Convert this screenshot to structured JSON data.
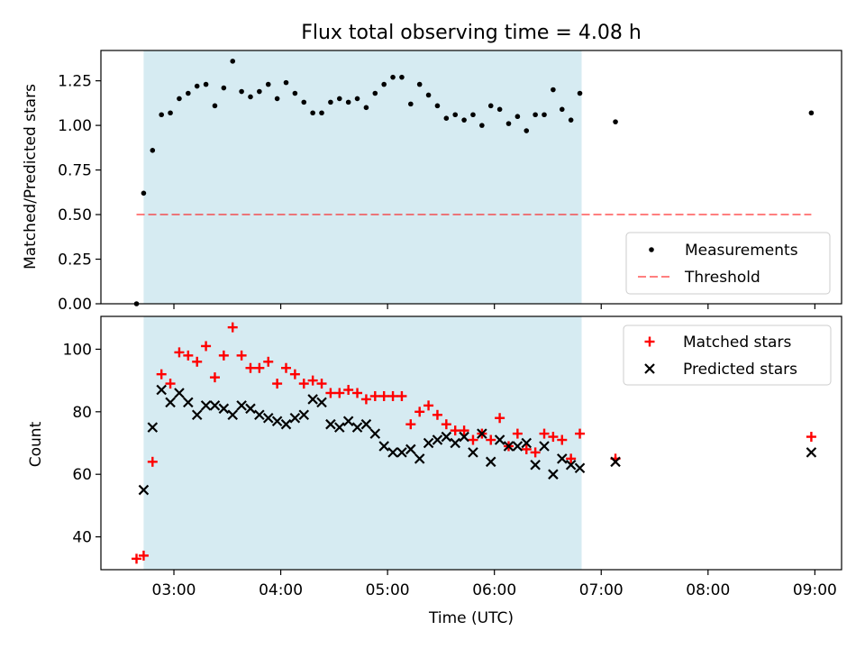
{
  "title": "Flux total observing time = 4.08 h",
  "colors": {
    "shade": "#add8e6",
    "matched": "#ff0000",
    "predicted": "#000000",
    "threshold": "#ff0000",
    "measurement": "#000000"
  },
  "chart_data": [
    {
      "type": "scatter",
      "ylabel": "Matched/Predicted stars",
      "ylim": [
        0.0,
        1.42
      ],
      "yticks": [
        0.0,
        0.25,
        0.5,
        0.75,
        1.0,
        1.25
      ],
      "ytick_labels": [
        "0.00",
        "0.25",
        "0.50",
        "0.75",
        "1.00",
        "1.25"
      ],
      "legend_position": "lower-right",
      "shaded_interval": [
        "02:43",
        "06:49"
      ],
      "threshold": {
        "name": "Threshold",
        "value": 0.5,
        "x_range": [
          "02:39",
          "08:58"
        ],
        "style": "dashed"
      },
      "series": [
        {
          "name": "Measurements",
          "marker": "dot",
          "x": [
            "02:39",
            "02:43",
            "02:48",
            "02:53",
            "02:58",
            "03:03",
            "03:08",
            "03:13",
            "03:18",
            "03:23",
            "03:28",
            "03:33",
            "03:38",
            "03:43",
            "03:48",
            "03:53",
            "03:58",
            "04:03",
            "04:08",
            "04:13",
            "04:18",
            "04:23",
            "04:28",
            "04:33",
            "04:38",
            "04:43",
            "04:48",
            "04:53",
            "04:58",
            "05:03",
            "05:08",
            "05:13",
            "05:18",
            "05:23",
            "05:28",
            "05:33",
            "05:38",
            "05:43",
            "05:48",
            "05:53",
            "05:58",
            "06:03",
            "06:08",
            "06:13",
            "06:18",
            "06:23",
            "06:28",
            "06:33",
            "06:38",
            "06:43",
            "06:48",
            "07:08",
            "08:58"
          ],
          "y": [
            0.0,
            0.62,
            0.86,
            1.06,
            1.07,
            1.15,
            1.18,
            1.22,
            1.23,
            1.11,
            1.21,
            1.36,
            1.19,
            1.16,
            1.19,
            1.23,
            1.15,
            1.24,
            1.18,
            1.13,
            1.07,
            1.07,
            1.13,
            1.15,
            1.13,
            1.15,
            1.1,
            1.18,
            1.23,
            1.27,
            1.27,
            1.12,
            1.23,
            1.17,
            1.11,
            1.04,
            1.06,
            1.03,
            1.06,
            1.0,
            1.11,
            1.09,
            1.01,
            1.05,
            0.97,
            1.06,
            1.06,
            1.2,
            1.09,
            1.03,
            1.18,
            1.02,
            1.07
          ]
        }
      ]
    },
    {
      "type": "scatter",
      "xlabel": "Time (UTC)",
      "ylabel": "Count",
      "ylim": [
        29.5,
        110.5
      ],
      "yticks": [
        40,
        60,
        80,
        100
      ],
      "ytick_labels": [
        "40",
        "60",
        "80",
        "100"
      ],
      "xlim": [
        "02:19",
        "09:15"
      ],
      "xticks": [
        "03:00",
        "04:00",
        "05:00",
        "06:00",
        "07:00",
        "08:00",
        "09:00"
      ],
      "legend_position": "upper-right",
      "shaded_interval": [
        "02:43",
        "06:49"
      ],
      "series": [
        {
          "name": "Matched stars",
          "marker": "plus",
          "x": [
            "02:39",
            "02:43",
            "02:48",
            "02:53",
            "02:58",
            "03:03",
            "03:08",
            "03:13",
            "03:18",
            "03:23",
            "03:28",
            "03:33",
            "03:38",
            "03:43",
            "03:48",
            "03:53",
            "03:58",
            "04:03",
            "04:08",
            "04:13",
            "04:18",
            "04:23",
            "04:28",
            "04:33",
            "04:38",
            "04:43",
            "04:48",
            "04:53",
            "04:58",
            "05:03",
            "05:08",
            "05:13",
            "05:18",
            "05:23",
            "05:28",
            "05:33",
            "05:38",
            "05:43",
            "05:48",
            "05:53",
            "05:58",
            "06:03",
            "06:08",
            "06:13",
            "06:18",
            "06:23",
            "06:28",
            "06:33",
            "06:38",
            "06:43",
            "06:48",
            "07:08",
            "08:58"
          ],
          "y": [
            33,
            34,
            64,
            92,
            89,
            99,
            98,
            96,
            101,
            91,
            98,
            107,
            98,
            94,
            94,
            96,
            89,
            94,
            92,
            89,
            90,
            89,
            86,
            86,
            87,
            86,
            84,
            85,
            85,
            85,
            85,
            76,
            80,
            82,
            79,
            76,
            74,
            74,
            71,
            73,
            71,
            78,
            69,
            73,
            68,
            67,
            73,
            72,
            71,
            65,
            73,
            65,
            72
          ]
        },
        {
          "name": "Predicted stars",
          "marker": "x",
          "x": [
            "02:43",
            "02:48",
            "02:53",
            "02:58",
            "03:03",
            "03:08",
            "03:13",
            "03:18",
            "03:23",
            "03:28",
            "03:33",
            "03:38",
            "03:43",
            "03:48",
            "03:53",
            "03:58",
            "04:03",
            "04:08",
            "04:13",
            "04:18",
            "04:23",
            "04:28",
            "04:33",
            "04:38",
            "04:43",
            "04:48",
            "04:53",
            "04:58",
            "05:03",
            "05:08",
            "05:13",
            "05:18",
            "05:23",
            "05:28",
            "05:33",
            "05:38",
            "05:43",
            "05:48",
            "05:53",
            "05:58",
            "06:03",
            "06:08",
            "06:13",
            "06:18",
            "06:23",
            "06:28",
            "06:33",
            "06:38",
            "06:43",
            "06:48",
            "07:08",
            "08:58"
          ],
          "y": [
            55,
            75,
            87,
            83,
            86,
            83,
            79,
            82,
            82,
            81,
            79,
            82,
            81,
            79,
            78,
            77,
            76,
            78,
            79,
            84,
            83,
            76,
            75,
            77,
            75,
            76,
            73,
            69,
            67,
            67,
            68,
            65,
            70,
            71,
            72,
            70,
            72,
            67,
            73,
            64,
            71,
            69,
            69,
            70,
            63,
            69,
            60,
            65,
            63,
            62,
            64,
            67
          ]
        }
      ]
    }
  ]
}
